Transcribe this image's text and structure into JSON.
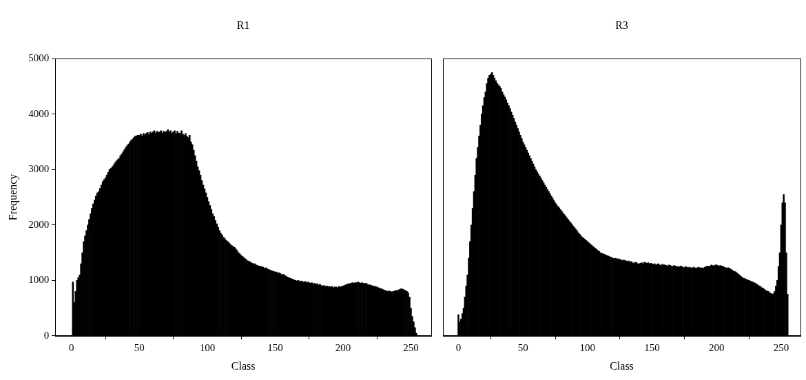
{
  "chart_data": [
    {
      "type": "bar",
      "title": "R1",
      "x_label": "Class",
      "y_label": "Frequency",
      "x": [
        0,
        1,
        2,
        3,
        4,
        5,
        6,
        7,
        8,
        9,
        10,
        11,
        12,
        13,
        14,
        15,
        16,
        17,
        18,
        19,
        20,
        21,
        22,
        23,
        24,
        25,
        26,
        27,
        28,
        29,
        30,
        31,
        32,
        33,
        34,
        35,
        36,
        37,
        38,
        39,
        40,
        41,
        42,
        43,
        44,
        45,
        46,
        47,
        48,
        49,
        50,
        51,
        52,
        53,
        54,
        55,
        56,
        57,
        58,
        59,
        60,
        61,
        62,
        63,
        64,
        65,
        66,
        67,
        68,
        69,
        70,
        71,
        72,
        73,
        74,
        75,
        76,
        77,
        78,
        79,
        80,
        81,
        82,
        83,
        84,
        85,
        86,
        87,
        88,
        89,
        90,
        91,
        92,
        93,
        94,
        95,
        96,
        97,
        98,
        99,
        100,
        101,
        102,
        103,
        104,
        105,
        106,
        107,
        108,
        109,
        110,
        111,
        112,
        113,
        114,
        115,
        116,
        117,
        118,
        119,
        120,
        121,
        122,
        123,
        124,
        125,
        126,
        127,
        128,
        129,
        130,
        131,
        132,
        133,
        134,
        135,
        136,
        137,
        138,
        139,
        140,
        141,
        142,
        143,
        144,
        145,
        146,
        147,
        148,
        149,
        150,
        151,
        152,
        153,
        154,
        155,
        156,
        157,
        158,
        159,
        160,
        161,
        162,
        163,
        164,
        165,
        166,
        167,
        168,
        169,
        170,
        171,
        172,
        173,
        174,
        175,
        176,
        177,
        178,
        179,
        180,
        181,
        182,
        183,
        184,
        185,
        186,
        187,
        188,
        189,
        190,
        191,
        192,
        193,
        194,
        195,
        196,
        197,
        198,
        199,
        200,
        201,
        202,
        203,
        204,
        205,
        206,
        207,
        208,
        209,
        210,
        211,
        212,
        213,
        214,
        215,
        216,
        217,
        218,
        219,
        220,
        221,
        222,
        223,
        224,
        225,
        226,
        227,
        228,
        229,
        230,
        231,
        232,
        233,
        234,
        235,
        236,
        237,
        238,
        239,
        240,
        241,
        242,
        243,
        244,
        245,
        246,
        247,
        248,
        249,
        250,
        251,
        252,
        253,
        254,
        255
      ],
      "values": [
        0,
        970,
        600,
        800,
        1000,
        1050,
        1100,
        1300,
        1500,
        1700,
        1800,
        1900,
        2000,
        2100,
        2200,
        2300,
        2380,
        2450,
        2520,
        2580,
        2600,
        2660,
        2720,
        2780,
        2820,
        2850,
        2900,
        2950,
        3000,
        3020,
        3050,
        3080,
        3120,
        3150,
        3180,
        3200,
        3250,
        3280,
        3320,
        3360,
        3400,
        3430,
        3460,
        3500,
        3530,
        3550,
        3580,
        3600,
        3610,
        3620,
        3620,
        3640,
        3610,
        3650,
        3630,
        3650,
        3670,
        3640,
        3680,
        3660,
        3680,
        3700,
        3660,
        3690,
        3670,
        3680,
        3700,
        3660,
        3690,
        3670,
        3690,
        3720,
        3680,
        3700,
        3660,
        3680,
        3700,
        3650,
        3690,
        3660,
        3650,
        3700,
        3640,
        3620,
        3650,
        3600,
        3580,
        3620,
        3500,
        3450,
        3350,
        3250,
        3150,
        3050,
        2980,
        2900,
        2800,
        2720,
        2650,
        2580,
        2500,
        2420,
        2350,
        2280,
        2200,
        2150,
        2080,
        2020,
        1960,
        1900,
        1850,
        1820,
        1780,
        1750,
        1720,
        1700,
        1680,
        1650,
        1630,
        1610,
        1600,
        1570,
        1540,
        1500,
        1480,
        1450,
        1430,
        1410,
        1390,
        1370,
        1350,
        1340,
        1330,
        1310,
        1300,
        1300,
        1280,
        1270,
        1260,
        1250,
        1250,
        1240,
        1220,
        1230,
        1210,
        1200,
        1190,
        1180,
        1170,
        1160,
        1150,
        1150,
        1130,
        1140,
        1120,
        1100,
        1110,
        1090,
        1080,
        1060,
        1050,
        1040,
        1030,
        1020,
        1010,
        1000,
        990,
        1000,
        980,
        990,
        980,
        970,
        980,
        960,
        970,
        960,
        950,
        960,
        940,
        950,
        930,
        940,
        920,
        930,
        910,
        900,
        910,
        890,
        900,
        890,
        890,
        880,
        890,
        870,
        880,
        880,
        870,
        890,
        880,
        890,
        900,
        910,
        920,
        930,
        940,
        940,
        950,
        960,
        950,
        960,
        960,
        970,
        960,
        950,
        960,
        950,
        940,
        950,
        930,
        920,
        920,
        910,
        900,
        890,
        890,
        880,
        870,
        860,
        850,
        840,
        830,
        820,
        810,
        800,
        810,
        800,
        790,
        800,
        810,
        820,
        820,
        830,
        840,
        850,
        840,
        830,
        820,
        800,
        780,
        700,
        500,
        350,
        250,
        150,
        50,
        0
      ],
      "color": "#000000",
      "xlim": [
        -12,
        265
      ],
      "xticks": [
        0,
        50,
        100,
        150,
        200,
        250
      ],
      "ylim": [
        0,
        5000
      ],
      "yticks": [
        0,
        1000,
        2000,
        3000,
        4000,
        5000
      ],
      "grid": false
    },
    {
      "type": "bar",
      "title": "R3",
      "x_label": "Class",
      "x": [
        0,
        1,
        2,
        3,
        4,
        5,
        6,
        7,
        8,
        9,
        10,
        11,
        12,
        13,
        14,
        15,
        16,
        17,
        18,
        19,
        20,
        21,
        22,
        23,
        24,
        25,
        26,
        27,
        28,
        29,
        30,
        31,
        32,
        33,
        34,
        35,
        36,
        37,
        38,
        39,
        40,
        41,
        42,
        43,
        44,
        45,
        46,
        47,
        48,
        49,
        50,
        51,
        52,
        53,
        54,
        55,
        56,
        57,
        58,
        59,
        60,
        61,
        62,
        63,
        64,
        65,
        66,
        67,
        68,
        69,
        70,
        71,
        72,
        73,
        74,
        75,
        76,
        77,
        78,
        79,
        80,
        81,
        82,
        83,
        84,
        85,
        86,
        87,
        88,
        89,
        90,
        91,
        92,
        93,
        94,
        95,
        96,
        97,
        98,
        99,
        100,
        101,
        102,
        103,
        104,
        105,
        106,
        107,
        108,
        109,
        110,
        111,
        112,
        113,
        114,
        115,
        116,
        117,
        118,
        119,
        120,
        121,
        122,
        123,
        124,
        125,
        126,
        127,
        128,
        129,
        130,
        131,
        132,
        133,
        134,
        135,
        136,
        137,
        138,
        139,
        140,
        141,
        142,
        143,
        144,
        145,
        146,
        147,
        148,
        149,
        150,
        151,
        152,
        153,
        154,
        155,
        156,
        157,
        158,
        159,
        160,
        161,
        162,
        163,
        164,
        165,
        166,
        167,
        168,
        169,
        170,
        171,
        172,
        173,
        174,
        175,
        176,
        177,
        178,
        179,
        180,
        181,
        182,
        183,
        184,
        185,
        186,
        187,
        188,
        189,
        190,
        191,
        192,
        193,
        194,
        195,
        196,
        197,
        198,
        199,
        200,
        201,
        202,
        203,
        204,
        205,
        206,
        207,
        208,
        209,
        210,
        211,
        212,
        213,
        214,
        215,
        216,
        217,
        218,
        219,
        220,
        221,
        222,
        223,
        224,
        225,
        226,
        227,
        228,
        229,
        230,
        231,
        232,
        233,
        234,
        235,
        236,
        237,
        238,
        239,
        240,
        241,
        242,
        243,
        244,
        245,
        246,
        247,
        248,
        249,
        250,
        251,
        252,
        253,
        254,
        255
      ],
      "values": [
        380,
        250,
        300,
        400,
        500,
        700,
        900,
        1100,
        1400,
        1700,
        2000,
        2300,
        2600,
        2900,
        3200,
        3400,
        3600,
        3800,
        4000,
        4150,
        4300,
        4400,
        4550,
        4650,
        4700,
        4720,
        4750,
        4700,
        4650,
        4600,
        4550,
        4530,
        4500,
        4460,
        4400,
        4350,
        4310,
        4260,
        4200,
        4150,
        4100,
        4040,
        3980,
        3920,
        3860,
        3800,
        3740,
        3680,
        3620,
        3560,
        3500,
        3450,
        3400,
        3350,
        3300,
        3250,
        3200,
        3150,
        3100,
        3050,
        3000,
        2960,
        2920,
        2880,
        2840,
        2800,
        2760,
        2720,
        2680,
        2640,
        2600,
        2560,
        2520,
        2480,
        2440,
        2400,
        2370,
        2340,
        2310,
        2280,
        2250,
        2220,
        2190,
        2160,
        2130,
        2100,
        2070,
        2040,
        2010,
        1980,
        1950,
        1920,
        1890,
        1860,
        1830,
        1800,
        1780,
        1760,
        1740,
        1720,
        1700,
        1680,
        1660,
        1640,
        1620,
        1600,
        1580,
        1560,
        1540,
        1520,
        1500,
        1490,
        1480,
        1470,
        1460,
        1450,
        1440,
        1430,
        1420,
        1410,
        1400,
        1390,
        1400,
        1380,
        1390,
        1380,
        1370,
        1360,
        1370,
        1360,
        1350,
        1340,
        1350,
        1330,
        1340,
        1320,
        1310,
        1330,
        1320,
        1300,
        1300,
        1310,
        1320,
        1300,
        1330,
        1320,
        1310,
        1320,
        1300,
        1310,
        1300,
        1290,
        1300,
        1280,
        1290,
        1300,
        1280,
        1270,
        1290,
        1280,
        1280,
        1270,
        1260,
        1280,
        1270,
        1260,
        1250,
        1270,
        1260,
        1250,
        1250,
        1240,
        1260,
        1250,
        1240,
        1230,
        1250,
        1240,
        1230,
        1240,
        1230,
        1220,
        1240,
        1230,
        1220,
        1230,
        1240,
        1230,
        1220,
        1230,
        1220,
        1240,
        1250,
        1260,
        1250,
        1260,
        1280,
        1270,
        1260,
        1280,
        1280,
        1270,
        1260,
        1270,
        1260,
        1250,
        1240,
        1230,
        1220,
        1230,
        1220,
        1200,
        1190,
        1170,
        1160,
        1150,
        1130,
        1110,
        1090,
        1070,
        1050,
        1040,
        1030,
        1020,
        1010,
        1000,
        990,
        980,
        970,
        960,
        950,
        930,
        920,
        900,
        890,
        870,
        860,
        840,
        820,
        810,
        800,
        780,
        770,
        750,
        760,
        800,
        900,
        1000,
        1250,
        1500,
        2000,
        2400,
        2550,
        2400,
        1500,
        750
      ],
      "color": "#000000",
      "xlim": [
        -12,
        265
      ],
      "xticks": [
        0,
        50,
        100,
        150,
        200,
        250
      ],
      "ylim": [
        0,
        5000
      ],
      "grid": false,
      "tick_labels": "x"
    }
  ]
}
